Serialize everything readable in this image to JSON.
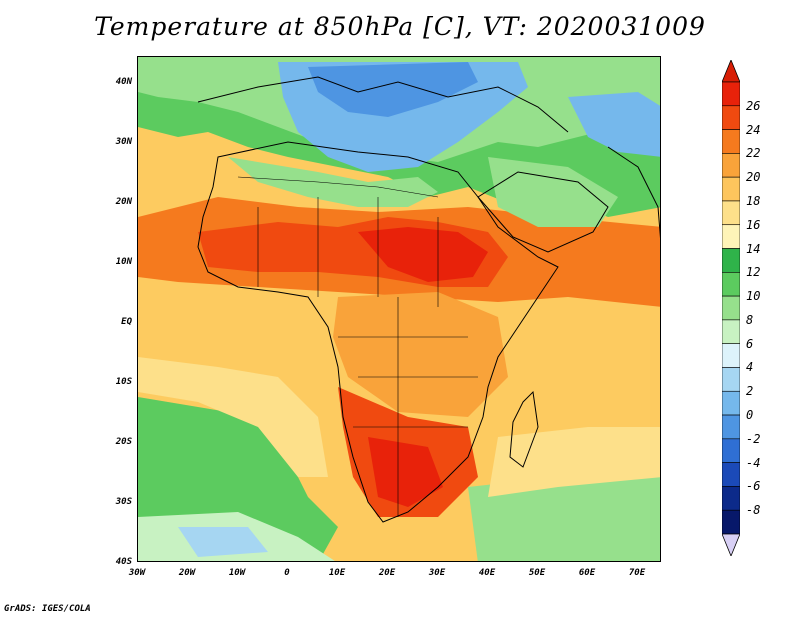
{
  "title": "Temperature at 850hPa [C], VT: 2020031009",
  "credit": "GrADS: IGES/COLA",
  "map": {
    "lon_range": [
      -30,
      75
    ],
    "lat_range": [
      -40,
      45
    ],
    "lat_ticks": [
      "40N",
      "30N",
      "20N",
      "10N",
      "EQ",
      "10S",
      "20S",
      "30S",
      "40S"
    ],
    "lon_ticks": [
      "30W",
      "20W",
      "10W",
      "0",
      "10E",
      "20E",
      "30E",
      "40E",
      "50E",
      "60E",
      "70E"
    ],
    "background_color": "#fdcb60"
  },
  "colorbar": {
    "labels": [
      "26",
      "24",
      "22",
      "20",
      "18",
      "16",
      "14",
      "12",
      "10",
      "8",
      "6",
      "4",
      "2",
      "0",
      "-2",
      "-4",
      "-6",
      "-8"
    ],
    "colors": [
      "#e8220a",
      "#f04a10",
      "#f57a1e",
      "#f9a33a",
      "#fdc55d",
      "#fde08a",
      "#fef4b8",
      "#2fb34a",
      "#5ccb5f",
      "#96e08c",
      "#c8f2c2",
      "#ddf3fb",
      "#a6d6f2",
      "#75b8ec",
      "#4e95e2",
      "#2f6fd4",
      "#1b4ab8",
      "#0c2a8a",
      "#07186a"
    ],
    "top_arrow_color": "#d81e05",
    "bottom_arrow_color": "#d8d0f5"
  },
  "regions": [
    {
      "name": "mediterranean-cool",
      "color": "#75b8ec"
    },
    {
      "name": "europe-cold",
      "color": "#4e95e2"
    },
    {
      "name": "sahara-green",
      "color": "#5ccb5f"
    },
    {
      "name": "sahel-hot",
      "color": "#e8220a"
    },
    {
      "name": "central-africa-warm",
      "color": "#f9a33a"
    },
    {
      "name": "southern-africa-hot",
      "color": "#f04a10"
    },
    {
      "name": "south-atlantic-cool",
      "color": "#2fb34a"
    },
    {
      "name": "southern-ocean-cold",
      "color": "#a6d6f2"
    }
  ]
}
